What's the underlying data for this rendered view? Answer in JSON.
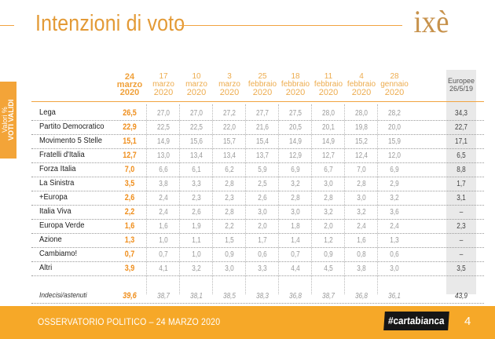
{
  "header": {
    "title": "Intenzioni di voto",
    "logo": "ixè"
  },
  "side_tab": {
    "line1": "Valori %",
    "line2": "VOTI VALIDI"
  },
  "table": {
    "columns": [
      {
        "lines": [
          "24",
          "marzo",
          "2020"
        ],
        "type": "current"
      },
      {
        "lines": [
          "17",
          "marzo",
          "2020"
        ],
        "type": "normal"
      },
      {
        "lines": [
          "10",
          "marzo",
          "2020"
        ],
        "type": "normal"
      },
      {
        "lines": [
          "3",
          "marzo",
          "2020"
        ],
        "type": "normal"
      },
      {
        "lines": [
          "25",
          "febbraio",
          "2020"
        ],
        "type": "normal"
      },
      {
        "lines": [
          "18",
          "febbraio",
          "2020"
        ],
        "type": "normal"
      },
      {
        "lines": [
          "11",
          "febbraio",
          "2020"
        ],
        "type": "normal"
      },
      {
        "lines": [
          "4",
          "febbraio",
          "2020"
        ],
        "type": "normal"
      },
      {
        "lines": [
          "28",
          "gennaio",
          "2020"
        ],
        "type": "normal"
      },
      {
        "lines": [
          "Europee",
          "26/5/19"
        ],
        "type": "euro"
      }
    ],
    "rows": [
      {
        "party": "Lega",
        "values": [
          "26,5",
          "27,0",
          "27,0",
          "27,2",
          "27,7",
          "27,5",
          "28,0",
          "28,0",
          "28,2",
          "34,3"
        ]
      },
      {
        "party": "Partito Democratico",
        "values": [
          "22,9",
          "22,5",
          "22,5",
          "22,0",
          "21,6",
          "20,5",
          "20,1",
          "19,8",
          "20,0",
          "22,7"
        ]
      },
      {
        "party": "Movimento 5 Stelle",
        "values": [
          "15,1",
          "14,9",
          "15,6",
          "15,7",
          "15,4",
          "14,9",
          "14,9",
          "15,2",
          "15,9",
          "17,1"
        ]
      },
      {
        "party": "Fratelli d'Italia",
        "values": [
          "12,7",
          "13,0",
          "13,4",
          "13,4",
          "13,7",
          "12,9",
          "12,7",
          "12,4",
          "12,0",
          "6,5"
        ]
      },
      {
        "party": "Forza Italia",
        "values": [
          "7,0",
          "6,6",
          "6,1",
          "6,2",
          "5,9",
          "6,9",
          "6,7",
          "7,0",
          "6,9",
          "8,8"
        ]
      },
      {
        "party": "La Sinistra",
        "values": [
          "3,5",
          "3,8",
          "3,3",
          "2,8",
          "2,5",
          "3,2",
          "3,0",
          "2,8",
          "2,9",
          "1,7"
        ]
      },
      {
        "party": "+Europa",
        "values": [
          "2,6",
          "2,4",
          "2,3",
          "2,3",
          "2,6",
          "2,8",
          "2,8",
          "3,0",
          "3,2",
          "3,1"
        ]
      },
      {
        "party": "Italia Viva",
        "values": [
          "2,2",
          "2,4",
          "2,6",
          "2,8",
          "3,0",
          "3,0",
          "3,2",
          "3,2",
          "3,6",
          "–"
        ]
      },
      {
        "party": "Europa Verde",
        "values": [
          "1,6",
          "1,6",
          "1,9",
          "2,2",
          "2,0",
          "1,8",
          "2,0",
          "2,4",
          "2,4",
          "2,3"
        ]
      },
      {
        "party": "Azione",
        "values": [
          "1,3",
          "1,0",
          "1,1",
          "1,5",
          "1,7",
          "1,4",
          "1,2",
          "1,6",
          "1,3",
          "–"
        ]
      },
      {
        "party": "Cambiamo!",
        "values": [
          "0,7",
          "0,7",
          "1,0",
          "0,9",
          "0,6",
          "0,7",
          "0,9",
          "0,8",
          "0,6",
          "–"
        ]
      },
      {
        "party": "Altri",
        "values": [
          "3,9",
          "4,1",
          "3,2",
          "3,0",
          "3,3",
          "4,4",
          "4,5",
          "3,8",
          "3,0",
          "3,5"
        ]
      },
      {
        "party": "Indecisi/astenuti",
        "values": [
          "39,6",
          "38,7",
          "38,1",
          "38,5",
          "38,3",
          "36,8",
          "38,7",
          "36,8",
          "36,1",
          "43,9"
        ]
      }
    ]
  },
  "footer": {
    "text": "OSSERVATORIO POLITICO – 24 MARZO 2020",
    "hashtag": "#cartabianca",
    "page": "4"
  },
  "colors": {
    "accent": "#f6a828",
    "title": "#e39a36",
    "current_value": "#ef8e1c",
    "euro_bg": "#e9e9e9"
  }
}
